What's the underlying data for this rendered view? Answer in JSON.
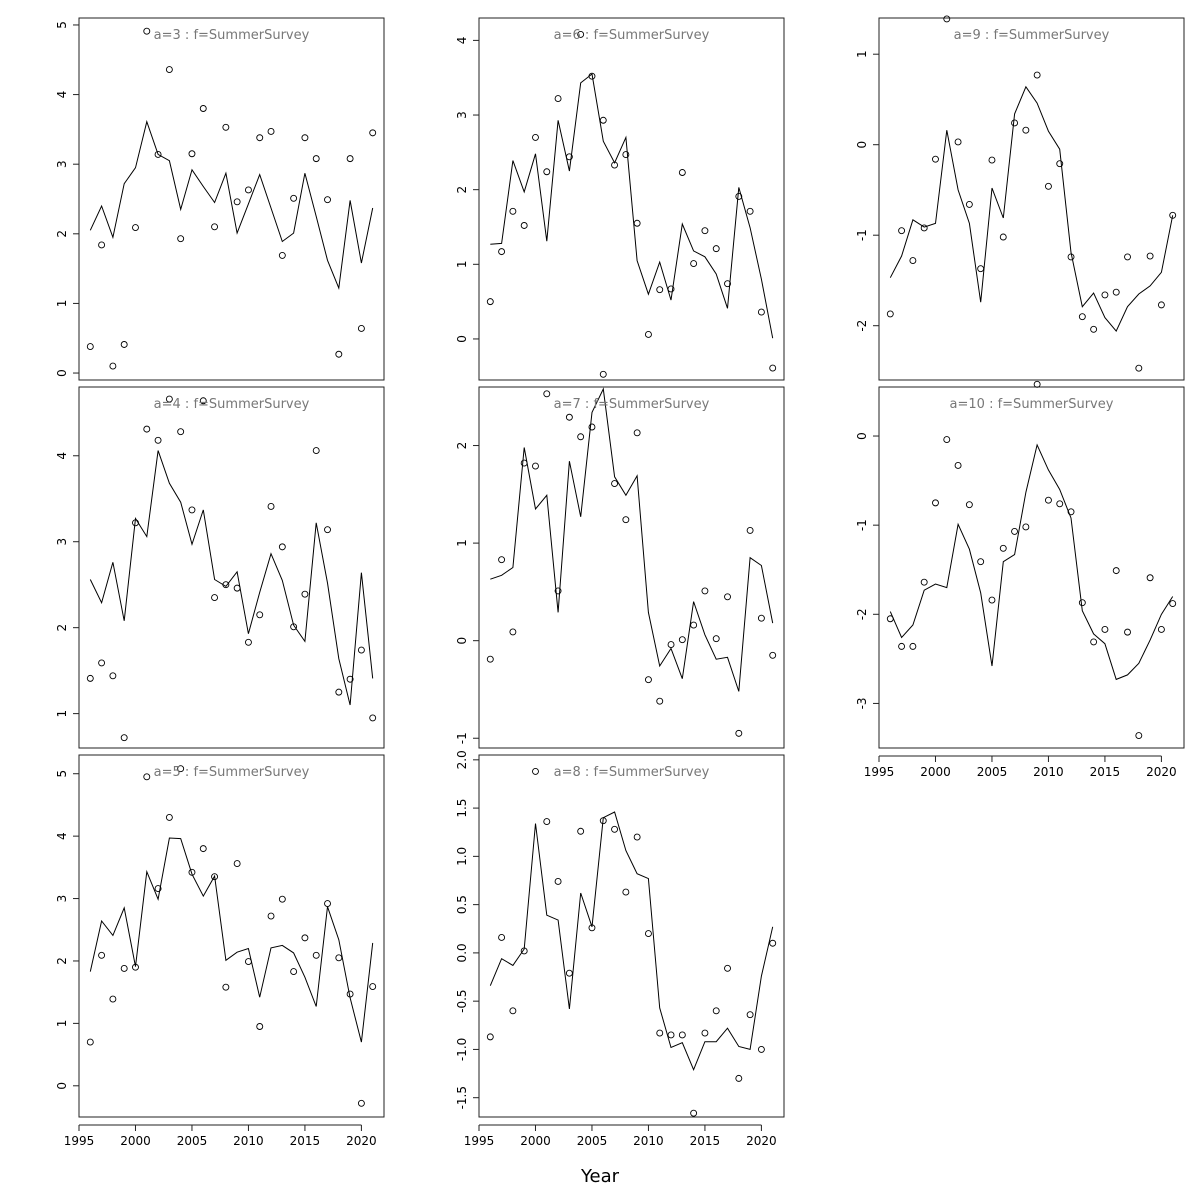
{
  "xlabel": "Year",
  "chart_data": [
    {
      "type": "scatter",
      "title": "a=3  :  f=SummerSurvey",
      "xlim": [
        1995,
        2022
      ],
      "ylim": [
        -0.1,
        5.1
      ],
      "yticks": [
        0,
        1,
        2,
        3,
        4,
        5
      ],
      "xticks": [],
      "x": [
        1996,
        1997,
        1998,
        1999,
        2000,
        2001,
        2002,
        2003,
        2004,
        2005,
        2006,
        2007,
        2008,
        2009,
        2010,
        2011,
        2012,
        2013,
        2014,
        2015,
        2016,
        2017,
        2018,
        2019,
        2020,
        2021
      ],
      "observed": [
        0.38,
        1.84,
        0.1,
        0.41,
        2.09,
        4.91,
        3.14,
        4.36,
        1.93,
        3.15,
        3.8,
        2.1,
        3.53,
        2.46,
        2.63,
        3.38,
        3.47,
        1.69,
        2.51,
        3.38,
        3.08,
        2.49,
        0.27,
        3.08,
        0.64,
        3.45
      ],
      "fitted": [
        2.05,
        2.4,
        1.95,
        2.72,
        2.95,
        3.61,
        3.14,
        3.05,
        2.35,
        2.92,
        2.68,
        2.45,
        2.87,
        2.01,
        2.43,
        2.85,
        2.37,
        1.89,
        2.01,
        2.87,
        2.25,
        1.62,
        1.22,
        2.48,
        1.58,
        2.37
      ]
    },
    {
      "type": "scatter",
      "title": "a=4  :  f=SummerSurvey",
      "xlim": [
        1995,
        2022
      ],
      "ylim": [
        0.6,
        4.8
      ],
      "yticks": [
        1,
        2,
        3,
        4
      ],
      "xticks": [],
      "x": [
        1996,
        1997,
        1998,
        1999,
        2000,
        2001,
        2002,
        2003,
        2004,
        2005,
        2006,
        2007,
        2008,
        2009,
        2010,
        2011,
        2012,
        2013,
        2014,
        2015,
        2016,
        2017,
        2018,
        2019,
        2020,
        2021
      ],
      "observed": [
        1.41,
        1.59,
        1.44,
        0.72,
        3.22,
        4.31,
        4.18,
        4.66,
        4.28,
        3.37,
        4.64,
        2.35,
        2.5,
        2.46,
        1.83,
        2.15,
        3.41,
        2.94,
        2.01,
        2.39,
        4.06,
        3.14,
        1.25,
        1.4,
        1.74,
        0.95
      ],
      "fitted": [
        2.56,
        2.29,
        2.76,
        2.08,
        3.27,
        3.06,
        4.06,
        3.68,
        3.46,
        2.97,
        3.37,
        2.56,
        2.48,
        2.65,
        1.93,
        2.41,
        2.86,
        2.55,
        2.03,
        1.84,
        3.22,
        2.52,
        1.64,
        1.1,
        2.64,
        1.41
      ]
    },
    {
      "type": "scatter",
      "title": "a=5  :  f=SummerSurvey",
      "xlim": [
        1995,
        2022
      ],
      "ylim": [
        -0.5,
        5.3
      ],
      "yticks": [
        0,
        1,
        2,
        3,
        4,
        5
      ],
      "xticks": [
        1995,
        2000,
        2005,
        2010,
        2015,
        2020
      ],
      "x": [
        1996,
        1997,
        1998,
        1999,
        2000,
        2001,
        2002,
        2003,
        2004,
        2005,
        2006,
        2007,
        2008,
        2009,
        2010,
        2011,
        2012,
        2013,
        2014,
        2015,
        2016,
        2017,
        2018,
        2019,
        2020,
        2021
      ],
      "observed": [
        0.7,
        2.09,
        1.39,
        1.88,
        1.9,
        4.95,
        3.16,
        4.3,
        5.08,
        3.42,
        3.8,
        3.35,
        1.58,
        3.56,
        1.99,
        0.95,
        2.72,
        2.99,
        1.83,
        2.37,
        2.09,
        2.92,
        2.05,
        1.47,
        -0.28,
        1.59
      ],
      "fitted": [
        1.83,
        2.64,
        2.41,
        2.85,
        1.91,
        3.43,
        2.99,
        3.97,
        3.96,
        3.39,
        3.04,
        3.36,
        2.01,
        2.14,
        2.2,
        1.42,
        2.21,
        2.25,
        2.13,
        1.74,
        1.27,
        2.87,
        2.34,
        1.41,
        0.7,
        2.29
      ]
    },
    {
      "type": "scatter",
      "title": "a=6  :  f=SummerSurvey",
      "xlim": [
        1995,
        2022
      ],
      "ylim": [
        -0.55,
        4.3
      ],
      "yticks": [
        0,
        1,
        2,
        3,
        4
      ],
      "xticks": [],
      "x": [
        1996,
        1997,
        1998,
        1999,
        2000,
        2001,
        2002,
        2003,
        2004,
        2005,
        2006,
        2007,
        2008,
        2009,
        2010,
        2011,
        2012,
        2013,
        2014,
        2015,
        2016,
        2017,
        2018,
        2019,
        2020,
        2021
      ],
      "observed": [
        0.5,
        1.17,
        1.71,
        1.52,
        2.7,
        2.24,
        3.22,
        2.44,
        4.08,
        3.52,
        2.93,
        2.33,
        2.47,
        1.55,
        0.06,
        0.66,
        0.67,
        2.23,
        1.01,
        1.45,
        1.21,
        0.74,
        1.91,
        1.71,
        0.36,
        -0.39
      ],
      "fitted": [
        1.27,
        1.28,
        2.39,
        1.97,
        2.48,
        1.31,
        2.93,
        2.25,
        3.43,
        3.55,
        2.65,
        2.36,
        2.7,
        1.05,
        0.6,
        1.03,
        0.52,
        1.54,
        1.18,
        1.1,
        0.87,
        0.41,
        2.03,
        1.49,
        0.8,
        0.01
      ]
    },
    {
      "type": "scatter",
      "title": "a=7  :  f=SummerSurvey",
      "xlim": [
        1995,
        2022
      ],
      "ylim": [
        -1.1,
        2.6
      ],
      "yticks": [
        -1,
        0,
        1,
        2
      ],
      "xticks": [],
      "x": [
        1996,
        1997,
        1998,
        1999,
        2000,
        2001,
        2002,
        2003,
        2004,
        2005,
        2006,
        2007,
        2008,
        2009,
        2010,
        2011,
        2012,
        2013,
        2014,
        2015,
        2016,
        2017,
        2018,
        2019,
        2020,
        2021
      ],
      "observed": [
        -0.19,
        0.83,
        0.09,
        1.82,
        1.79,
        2.53,
        0.51,
        2.29,
        2.09,
        2.19,
        2.73,
        1.61,
        1.24,
        2.13,
        -0.4,
        -0.62,
        -0.04,
        0.01,
        0.16,
        0.51,
        0.02,
        0.45,
        -0.95,
        1.13,
        0.23,
        -0.15
      ],
      "fitted": [
        0.63,
        0.67,
        0.75,
        1.98,
        1.35,
        1.49,
        0.29,
        1.84,
        1.27,
        2.34,
        2.58,
        1.68,
        1.49,
        1.69,
        0.29,
        -0.26,
        -0.08,
        -0.39,
        0.4,
        0.06,
        -0.19,
        -0.17,
        -0.52,
        0.85,
        0.77,
        0.18
      ]
    },
    {
      "type": "scatter",
      "title": "a=8  :  f=SummerSurvey",
      "xlim": [
        1995,
        2022
      ],
      "ylim": [
        -1.7,
        2.05
      ],
      "yticks": [
        -1.5,
        -1.0,
        -0.5,
        0.0,
        0.5,
        1.0,
        1.5,
        2.0
      ],
      "ytick_labels": [
        "-1.5",
        "-1.0",
        "-0.5",
        "0.0",
        "0.5",
        "1.0",
        "1.5",
        "2.0"
      ],
      "xticks": [
        1995,
        2000,
        2005,
        2010,
        2015,
        2020
      ],
      "x": [
        1996,
        1997,
        1998,
        1999,
        2000,
        2001,
        2002,
        2003,
        2004,
        2005,
        2006,
        2007,
        2008,
        2009,
        2010,
        2011,
        2012,
        2013,
        2014,
        2015,
        2016,
        2017,
        2018,
        2019,
        2020,
        2021
      ],
      "observed": [
        -0.87,
        0.16,
        -0.6,
        0.02,
        1.88,
        1.36,
        0.74,
        -0.21,
        1.26,
        0.26,
        1.37,
        1.28,
        0.63,
        1.2,
        0.2,
        -0.83,
        -0.85,
        -0.85,
        -1.66,
        -0.83,
        -0.6,
        -0.16,
        -1.3,
        -0.64,
        -1.0,
        0.1
      ],
      "fitted": [
        -0.34,
        -0.06,
        -0.13,
        0.04,
        1.34,
        0.39,
        0.34,
        -0.58,
        0.62,
        0.27,
        1.4,
        1.46,
        1.06,
        0.82,
        0.77,
        -0.57,
        -0.98,
        -0.93,
        -1.21,
        -0.92,
        -0.92,
        -0.78,
        -0.97,
        -1.0,
        -0.24,
        0.27
      ]
    },
    {
      "type": "scatter",
      "title": "a=9  :  f=SummerSurvey",
      "xlim": [
        1995,
        2022
      ],
      "ylim": [
        -2.6,
        1.4
      ],
      "yticks": [
        -2,
        -1,
        0,
        1
      ],
      "xticks": [],
      "x": [
        1996,
        1997,
        1998,
        1999,
        2000,
        2001,
        2002,
        2003,
        2004,
        2005,
        2006,
        2007,
        2008,
        2009,
        2010,
        2011,
        2012,
        2013,
        2014,
        2015,
        2016,
        2017,
        2018,
        2019,
        2020,
        2021
      ],
      "observed": [
        -1.87,
        -0.95,
        -1.28,
        -0.92,
        -0.16,
        1.39,
        0.03,
        -0.66,
        -1.37,
        -0.17,
        -1.02,
        0.24,
        0.16,
        0.77,
        -0.46,
        -0.21,
        -1.24,
        -1.9,
        -2.04,
        -1.66,
        -1.63,
        -1.24,
        -2.47,
        -1.23,
        -1.77,
        -0.78
      ],
      "fitted": [
        -1.47,
        -1.23,
        -0.83,
        -0.91,
        -0.87,
        0.16,
        -0.5,
        -0.87,
        -1.74,
        -0.48,
        -0.81,
        0.34,
        0.64,
        0.46,
        0.15,
        -0.05,
        -1.19,
        -1.79,
        -1.64,
        -1.91,
        -2.06,
        -1.79,
        -1.65,
        -1.56,
        -1.41,
        -0.78
      ]
    },
    {
      "type": "scatter",
      "title": "a=10  :  f=SummerSurvey",
      "xlim": [
        1995,
        2022
      ],
      "ylim": [
        -3.5,
        0.55
      ],
      "yticks": [
        -3,
        -2,
        -1,
        0
      ],
      "xticks": [
        1995,
        2000,
        2005,
        2010,
        2015,
        2020
      ],
      "x": [
        1996,
        1997,
        1998,
        1999,
        2000,
        2001,
        2002,
        2003,
        2004,
        2005,
        2006,
        2007,
        2008,
        2009,
        2010,
        2011,
        2012,
        2013,
        2014,
        2015,
        2016,
        2017,
        2018,
        2019,
        2020,
        2021
      ],
      "observed": [
        -2.05,
        -2.36,
        -2.36,
        -1.64,
        -0.75,
        -0.04,
        -0.33,
        -0.77,
        -1.41,
        -1.84,
        -1.26,
        -1.07,
        -1.02,
        0.58,
        -0.72,
        -0.76,
        -0.85,
        -1.87,
        -2.31,
        -2.17,
        -1.51,
        -2.2,
        -3.36,
        -1.59,
        -2.17,
        -1.88
      ],
      "fitted": [
        -1.97,
        -2.26,
        -2.12,
        -1.73,
        -1.66,
        -1.7,
        -0.99,
        -1.27,
        -1.76,
        -2.58,
        -1.41,
        -1.33,
        -0.63,
        -0.1,
        -0.38,
        -0.6,
        -0.92,
        -1.96,
        -2.22,
        -2.33,
        -2.73,
        -2.68,
        -2.55,
        -2.29,
        -2.0,
        -1.8
      ]
    }
  ]
}
